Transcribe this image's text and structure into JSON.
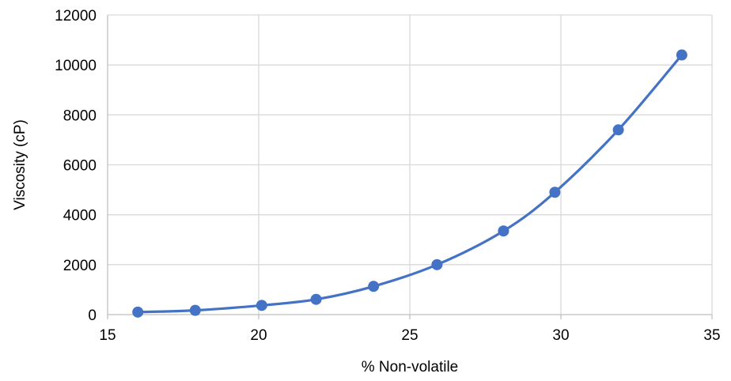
{
  "chart_data": {
    "type": "scatter",
    "title": "",
    "xlabel": "% Non-volatile",
    "ylabel": "Viscosity (cP)",
    "xlim": [
      15,
      35
    ],
    "ylim": [
      0,
      12000
    ],
    "x_ticks": [
      15,
      20,
      25,
      30,
      35
    ],
    "y_ticks": [
      0,
      2000,
      4000,
      6000,
      8000,
      10000,
      12000
    ],
    "x_tick_labels": [
      "15",
      "20",
      "25",
      "30",
      "35"
    ],
    "y_tick_labels": [
      "0",
      "2000",
      "4000",
      "6000",
      "8000",
      "10000",
      "12000"
    ],
    "grid": true,
    "legend": false,
    "smoothed_line": true,
    "series": [
      {
        "color": "#4472C4",
        "x": [
          16.0,
          17.9,
          20.1,
          21.9,
          23.8,
          25.9,
          28.1,
          29.8,
          31.9,
          34.0
        ],
        "y": [
          100,
          170,
          370,
          610,
          1130,
          2000,
          3350,
          4900,
          7400,
          10400
        ]
      }
    ]
  },
  "colors": {
    "series": "#4472C4",
    "grid": "#D9D9D9",
    "axis": "#BFBFBF"
  }
}
